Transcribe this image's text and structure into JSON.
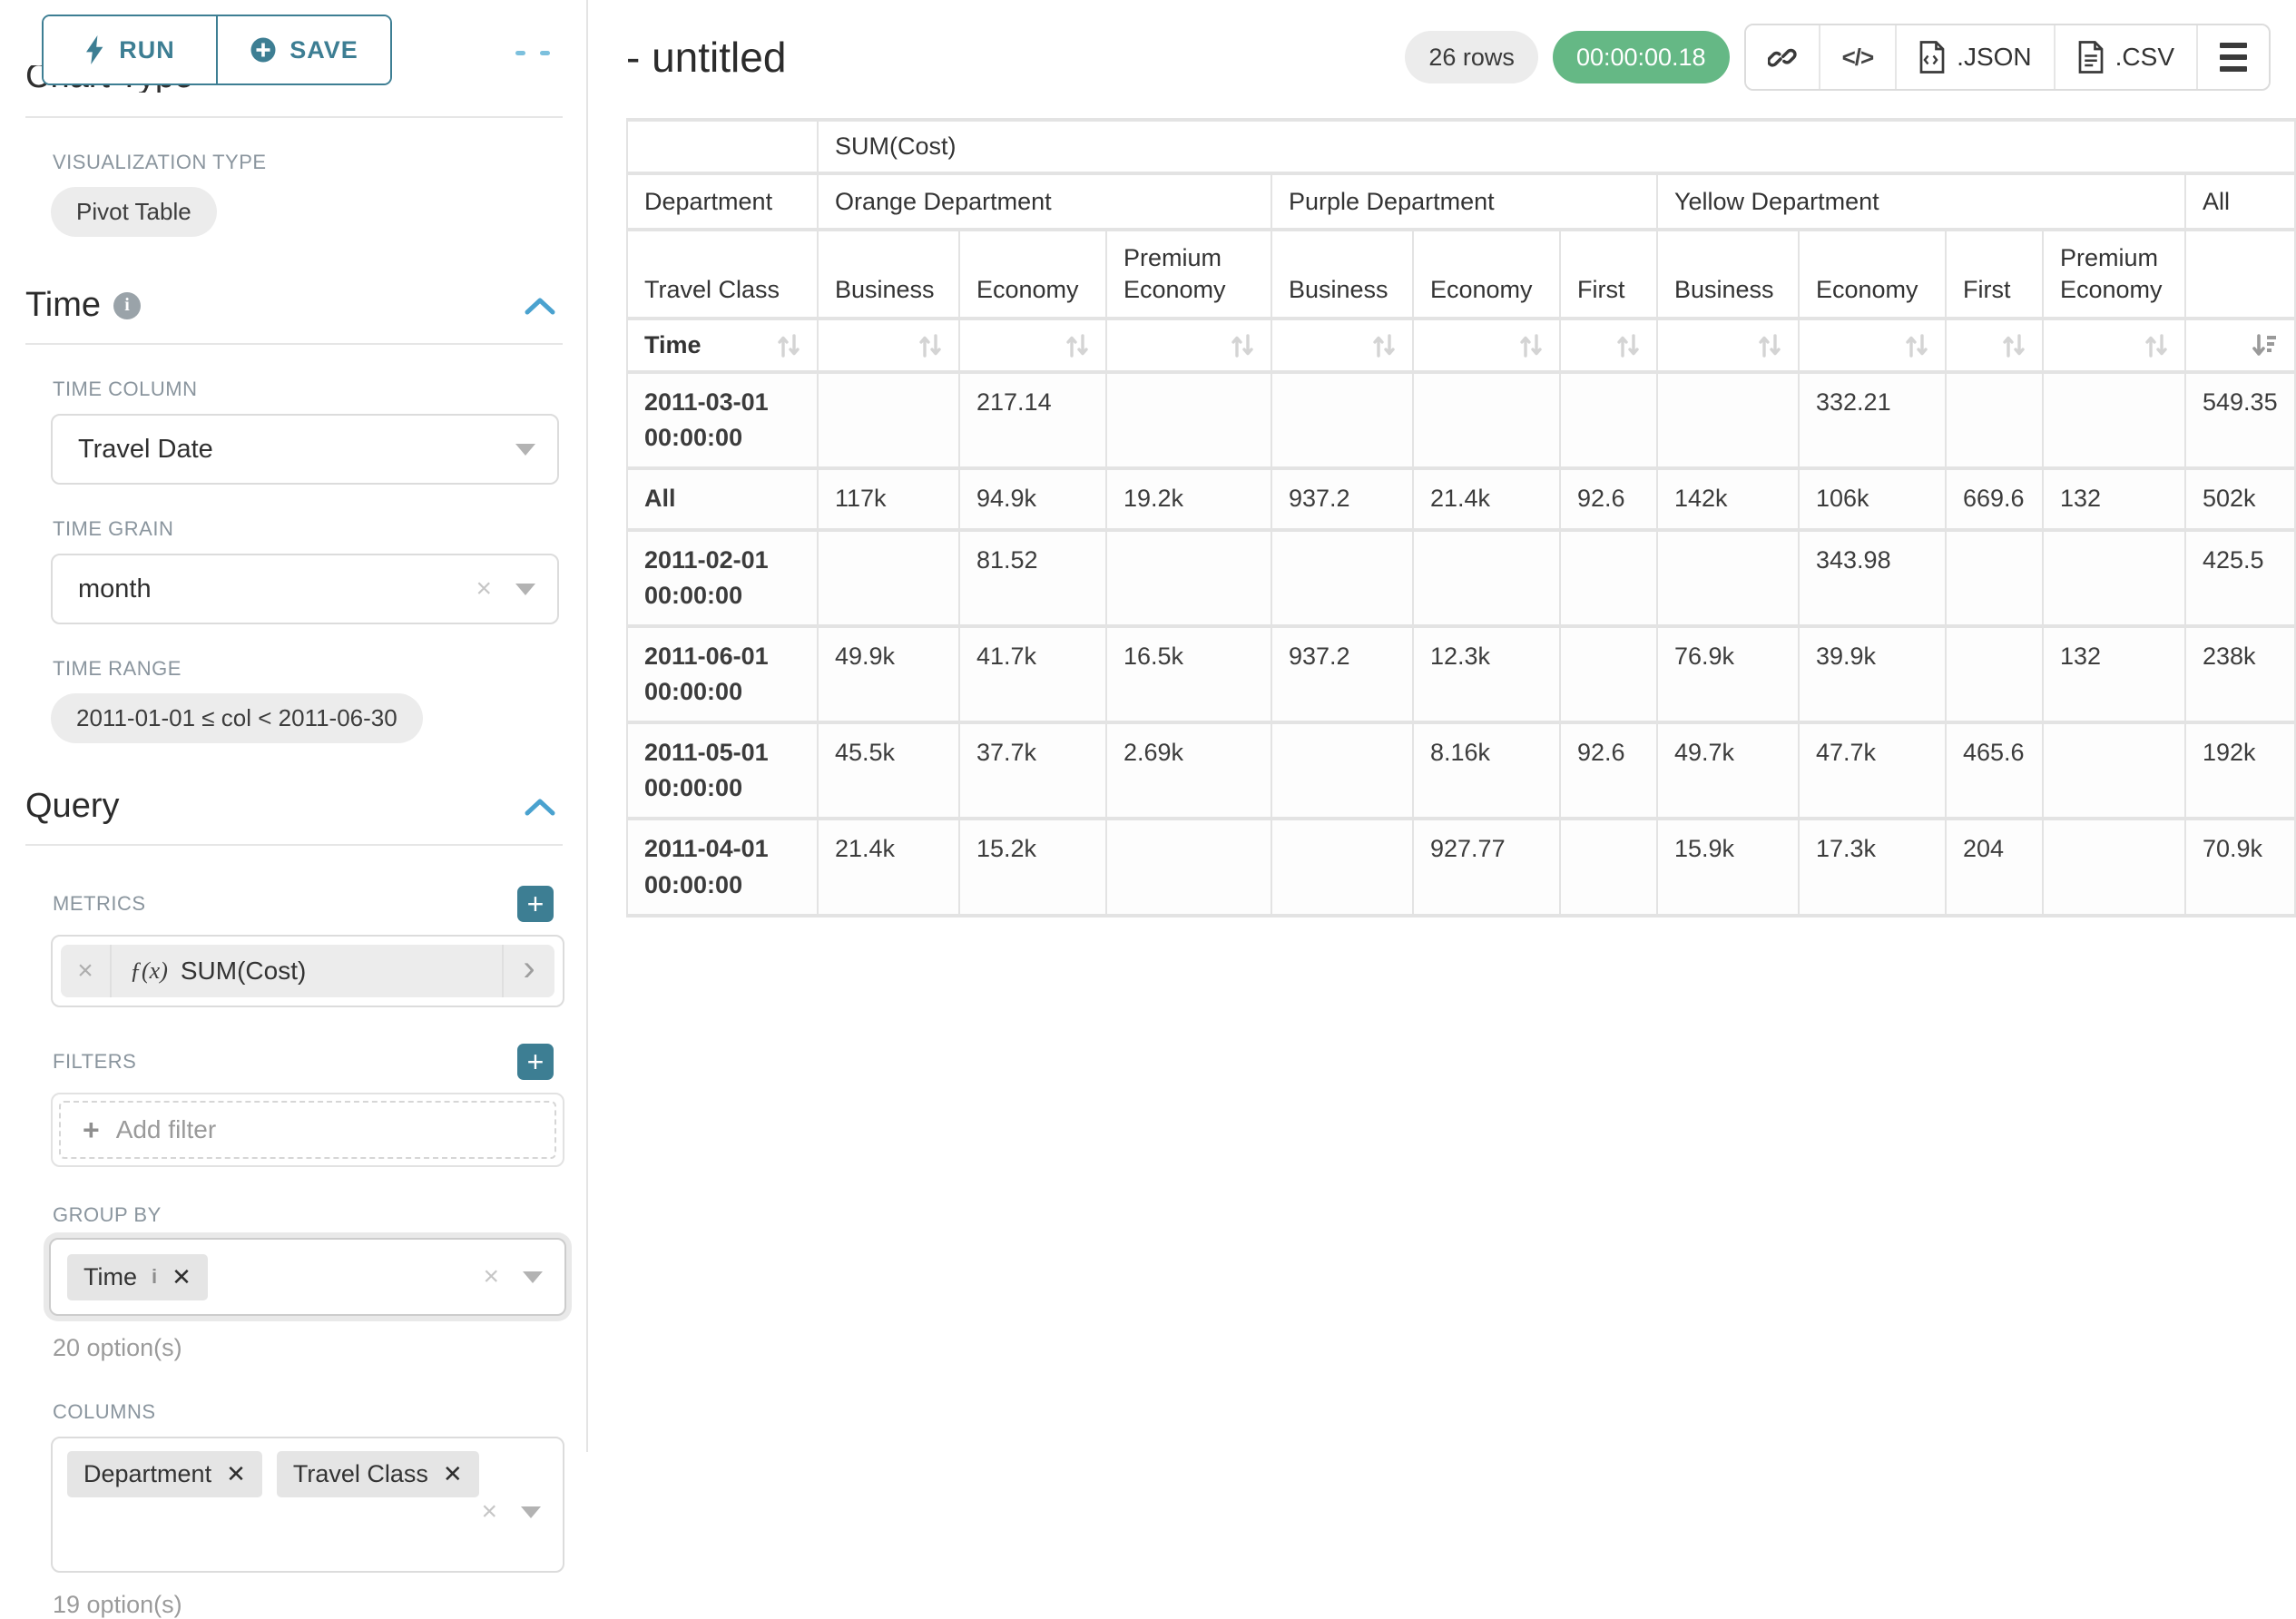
{
  "colors": {
    "teal": "#3d7e93",
    "chevron_blue": "#4aa2cf",
    "timer_green": "#65b885",
    "label_gray": "#8a959e"
  },
  "icons": {
    "clear_x": "×",
    "plus": "+",
    "chevron_right": "›",
    "fx": "ƒ(x)"
  },
  "sidebar": {
    "run_label": "RUN",
    "save_label": "SAVE",
    "chart_type_heading": "Chart Type",
    "visualization_type_label": "VISUALIZATION TYPE",
    "visualization_type_value": "Pivot Table",
    "time": {
      "title": "Time",
      "time_column_label": "TIME COLUMN",
      "time_column_value": "Travel Date",
      "time_grain_label": "TIME GRAIN",
      "time_grain_value": "month",
      "time_range_label": "TIME RANGE",
      "time_range_value": "2011-01-01 ≤ col < 2011-06-30"
    },
    "query": {
      "title": "Query",
      "metrics_label": "METRICS",
      "metric_fx": "ƒ(x)",
      "metric_value": "SUM(Cost)",
      "filters_label": "FILTERS",
      "add_filter_label": "Add filter",
      "group_by_label": "GROUP BY",
      "group_by_tags": [
        "Time"
      ],
      "group_by_options_note": "20 option(s)",
      "columns_label": "COLUMNS",
      "columns_tags": [
        "Department",
        "Travel Class"
      ],
      "columns_options_note": "19 option(s)"
    }
  },
  "header": {
    "title": "- untitled",
    "row_count_badge": "26 rows",
    "timer_badge": "00:00:00.18",
    "json_button": ".JSON",
    "csv_button": ".CSV"
  },
  "pivot": {
    "metric_header": "SUM(Cost)",
    "col_dimension_label": "Department",
    "row3_label": "Travel Class",
    "sort_row_label": "Time",
    "col_groups": [
      {
        "label": "Orange Department",
        "children": [
          "Business",
          "Economy",
          "Premium Economy"
        ]
      },
      {
        "label": "Purple Department",
        "children": [
          "Business",
          "Economy",
          "First"
        ]
      },
      {
        "label": "Yellow Department",
        "children": [
          "Business",
          "Economy",
          "First",
          "Premium Economy"
        ]
      },
      {
        "label": "All",
        "children": [
          ""
        ]
      }
    ],
    "rows": [
      {
        "label": "2011-03-01 00:00:00",
        "values": [
          "",
          "217.14",
          "",
          "",
          "",
          "",
          "",
          "332.21",
          "",
          "",
          "549.35"
        ]
      },
      {
        "label": "All",
        "values": [
          "117k",
          "94.9k",
          "19.2k",
          "937.2",
          "21.4k",
          "92.6",
          "142k",
          "106k",
          "669.6",
          "132",
          "502k"
        ]
      },
      {
        "label": "2011-02-01 00:00:00",
        "values": [
          "",
          "81.52",
          "",
          "",
          "",
          "",
          "",
          "343.98",
          "",
          "",
          "425.5"
        ]
      },
      {
        "label": "2011-06-01 00:00:00",
        "values": [
          "49.9k",
          "41.7k",
          "16.5k",
          "937.2",
          "12.3k",
          "",
          "76.9k",
          "39.9k",
          "",
          "132",
          "238k"
        ]
      },
      {
        "label": "2011-05-01 00:00:00",
        "values": [
          "45.5k",
          "37.7k",
          "2.69k",
          "",
          "8.16k",
          "92.6",
          "49.7k",
          "47.7k",
          "465.6",
          "",
          "192k"
        ]
      },
      {
        "label": "2011-04-01 00:00:00",
        "values": [
          "21.4k",
          "15.2k",
          "",
          "",
          "927.77",
          "",
          "15.9k",
          "17.3k",
          "204",
          "",
          "70.9k"
        ]
      }
    ]
  }
}
